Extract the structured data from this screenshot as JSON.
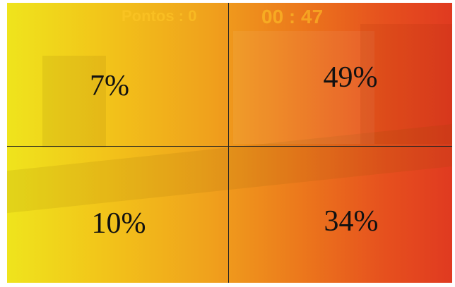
{
  "hud": {
    "score": "Pontos : 0",
    "timer": "00 : 47"
  },
  "quadrants": [
    {
      "label": "7%"
    },
    {
      "label": "49%"
    },
    {
      "label": "10%"
    },
    {
      "label": "34%"
    }
  ]
}
